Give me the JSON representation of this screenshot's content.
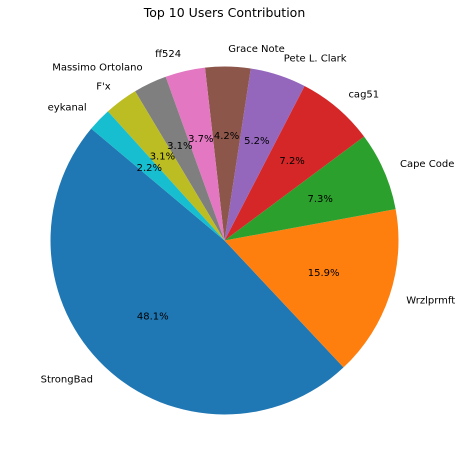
{
  "chart_data": {
    "type": "pie",
    "title": "Top 10 Users Contribution",
    "labels": [
      "StrongBad",
      "Wrzlprmft",
      "Cape Code",
      "cag51",
      "Pete L. Clark",
      "Grace Note",
      "ff524",
      "Massimo Ortolano",
      "F'x",
      "eykanal"
    ],
    "values": [
      48.1,
      15.9,
      7.3,
      7.2,
      5.2,
      4.2,
      3.7,
      3.1,
      3.1,
      2.2
    ],
    "percent_labels": [
      "48.1%",
      "15.9%",
      "7.3%",
      "7.2%",
      "5.2%",
      "4.2%",
      "3.7%",
      "3.1%",
      "3.1%",
      "2.2%"
    ],
    "colors": [
      "#1f77b4",
      "#ff7f0e",
      "#2ca02c",
      "#d62728",
      "#9467bd",
      "#8c564b",
      "#e377c2",
      "#7f7f7f",
      "#bcbd22",
      "#17becf"
    ],
    "start_angle_deg": 140,
    "direction": "counterclockwise",
    "legend": "none"
  }
}
